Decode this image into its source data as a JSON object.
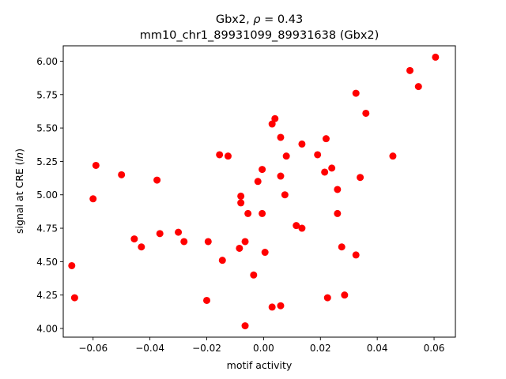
{
  "chart_data": {
    "type": "scatter",
    "title_line1": "Gbx2, ρ = 0.43",
    "title_line2": "mm10_chr1_89931099_89931638 (Gbx2)",
    "xlabel": "motif activity",
    "ylabel": "signal at CRE (ln)",
    "xlim": [
      -0.0705,
      0.0675
    ],
    "ylim": [
      3.935,
      6.115
    ],
    "xticks": [
      -0.06,
      -0.04,
      -0.02,
      0.0,
      0.02,
      0.04,
      0.06
    ],
    "xtick_labels": [
      "−0.06",
      "−0.04",
      "−0.02",
      "0.00",
      "0.02",
      "0.04",
      "0.06"
    ],
    "yticks": [
      4.0,
      4.25,
      4.5,
      4.75,
      5.0,
      5.25,
      5.5,
      5.75,
      6.0
    ],
    "ytick_labels": [
      "4.00",
      "4.25",
      "4.50",
      "4.75",
      "5.00",
      "5.25",
      "5.50",
      "5.75",
      "6.00"
    ],
    "grid": false,
    "marker_color": "#ff0000",
    "points": [
      {
        "x": -0.0675,
        "y": 4.47
      },
      {
        "x": -0.0665,
        "y": 4.23
      },
      {
        "x": -0.06,
        "y": 4.97
      },
      {
        "x": -0.059,
        "y": 5.22
      },
      {
        "x": -0.05,
        "y": 5.15
      },
      {
        "x": -0.0455,
        "y": 4.67
      },
      {
        "x": -0.043,
        "y": 4.61
      },
      {
        "x": -0.0375,
        "y": 5.11
      },
      {
        "x": -0.0365,
        "y": 4.71
      },
      {
        "x": -0.03,
        "y": 4.72
      },
      {
        "x": -0.028,
        "y": 4.65
      },
      {
        "x": -0.02,
        "y": 4.21
      },
      {
        "x": -0.0195,
        "y": 4.65
      },
      {
        "x": -0.0155,
        "y": 5.3
      },
      {
        "x": -0.0145,
        "y": 4.51
      },
      {
        "x": -0.0125,
        "y": 5.29
      },
      {
        "x": -0.0085,
        "y": 4.6
      },
      {
        "x": -0.008,
        "y": 4.99
      },
      {
        "x": -0.008,
        "y": 4.94
      },
      {
        "x": -0.0065,
        "y": 4.65
      },
      {
        "x": -0.0065,
        "y": 4.02
      },
      {
        "x": -0.0055,
        "y": 4.86
      },
      {
        "x": -0.0035,
        "y": 4.4
      },
      {
        "x": -0.002,
        "y": 5.1
      },
      {
        "x": -0.0005,
        "y": 5.19
      },
      {
        "x": -0.0005,
        "y": 4.86
      },
      {
        "x": 0.0005,
        "y": 4.57
      },
      {
        "x": 0.003,
        "y": 5.53
      },
      {
        "x": 0.003,
        "y": 4.16
      },
      {
        "x": 0.004,
        "y": 5.57
      },
      {
        "x": 0.006,
        "y": 5.43
      },
      {
        "x": 0.006,
        "y": 5.14
      },
      {
        "x": 0.006,
        "y": 4.17
      },
      {
        "x": 0.0075,
        "y": 5.0
      },
      {
        "x": 0.008,
        "y": 5.29
      },
      {
        "x": 0.0115,
        "y": 4.77
      },
      {
        "x": 0.0135,
        "y": 5.38
      },
      {
        "x": 0.0135,
        "y": 4.75
      },
      {
        "x": 0.019,
        "y": 5.3
      },
      {
        "x": 0.0215,
        "y": 5.17
      },
      {
        "x": 0.022,
        "y": 5.42
      },
      {
        "x": 0.0225,
        "y": 4.23
      },
      {
        "x": 0.024,
        "y": 5.2
      },
      {
        "x": 0.026,
        "y": 5.04
      },
      {
        "x": 0.026,
        "y": 4.86
      },
      {
        "x": 0.0275,
        "y": 4.61
      },
      {
        "x": 0.0285,
        "y": 4.25
      },
      {
        "x": 0.0325,
        "y": 5.76
      },
      {
        "x": 0.0325,
        "y": 4.55
      },
      {
        "x": 0.034,
        "y": 5.13
      },
      {
        "x": 0.036,
        "y": 5.61
      },
      {
        "x": 0.0455,
        "y": 5.29
      },
      {
        "x": 0.0515,
        "y": 5.93
      },
      {
        "x": 0.0545,
        "y": 5.81
      },
      {
        "x": 0.0605,
        "y": 6.03
      }
    ]
  }
}
